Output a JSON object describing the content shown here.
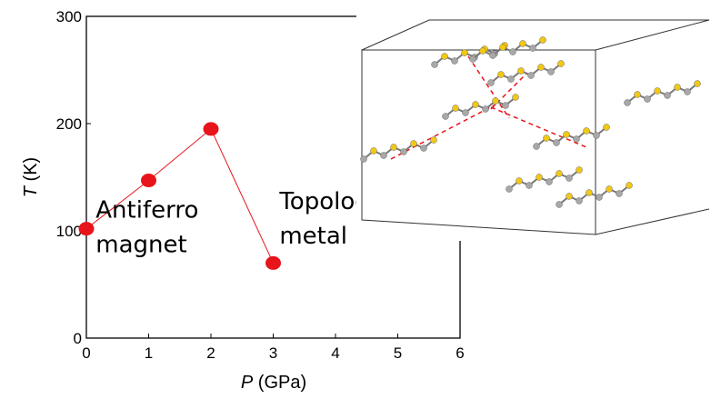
{
  "chart_data": {
    "type": "line",
    "x": [
      0,
      1,
      2,
      3
    ],
    "series": [
      {
        "color": "#e8141b",
        "values": [
          102,
          147,
          195,
          70
        ]
      }
    ],
    "xlim": [
      0,
      6
    ],
    "xticks": [
      0,
      1,
      2,
      3,
      4,
      5,
      6
    ],
    "ylim": [
      0,
      300
    ],
    "yticks": [
      0,
      100,
      200,
      300
    ],
    "x_label_symbol": "P",
    "x_label_unit": "(GPa)",
    "y_label_symbol": "T",
    "y_label_unit": "(K)",
    "annotations": [
      {
        "lines": [
          "Antiferro",
          "magnet"
        ],
        "x": 0.15,
        "y": 70
      },
      {
        "lines": [
          "Topological",
          "metal"
        ],
        "x": 3.1,
        "y": 78
      }
    ]
  }
}
